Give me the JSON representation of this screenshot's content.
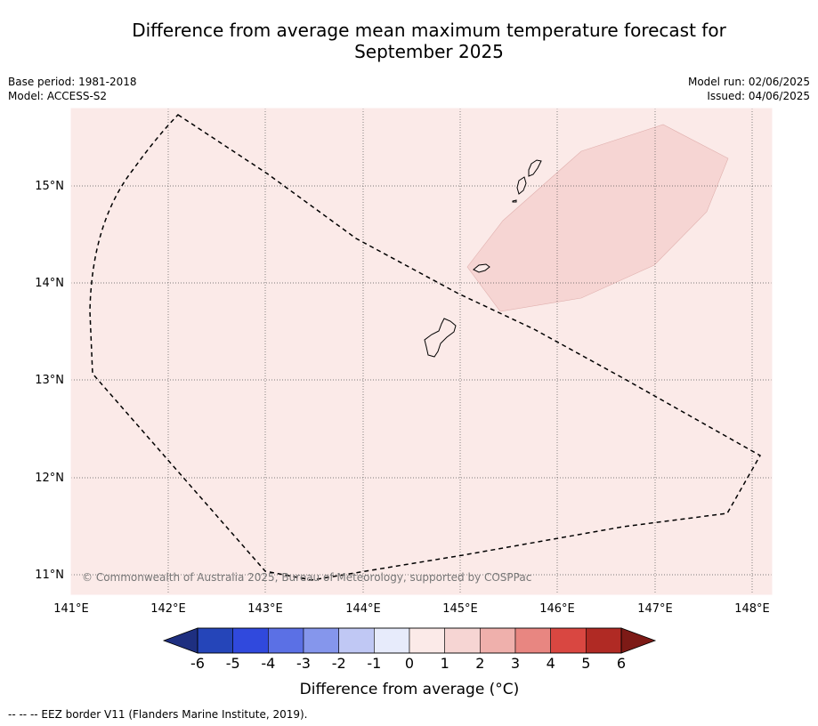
{
  "title_line1": "Difference from average mean maximum temperature forecast for",
  "title_line2": "September 2025",
  "meta_left": [
    "Base period: 1981-2018",
    "Model: ACCESS-S2"
  ],
  "meta_right": [
    "Model run: 02/06/2025",
    "Issued: 04/06/2025"
  ],
  "map": {
    "lon_ticks": [
      "141°E",
      "142°E",
      "143°E",
      "144°E",
      "145°E",
      "146°E",
      "147°E",
      "148°E"
    ],
    "lat_ticks": [
      "15°N",
      "14°N",
      "13°N",
      "12°N",
      "11°N"
    ],
    "background_color": "#fbeae8",
    "anomaly_patch_color": "#f6d5d3",
    "copyright": "© Commonwealth of Australia 2025, Bureau of Meteorology, supported by COSPPac"
  },
  "colorbar": {
    "ticks": [
      "-6",
      "-5",
      "-4",
      "-3",
      "-2",
      "-1",
      "0",
      "1",
      "2",
      "3",
      "4",
      "5",
      "6"
    ],
    "colors": [
      "#253494",
      "#2545b9",
      "#3049dd",
      "#5b70e5",
      "#8596ec",
      "#c0c8f4",
      "#e7ebfb",
      "#fbeae8",
      "#f6d5d3",
      "#efb0ac",
      "#e88681",
      "#d94741",
      "#b02a24"
    ],
    "under_color": "#1e2f80",
    "over_color": "#7d1a16",
    "label": "Difference from average (°C)"
  },
  "footer": "-- -- -- EEZ border V11 (Flanders Marine Institute, 2019)."
}
